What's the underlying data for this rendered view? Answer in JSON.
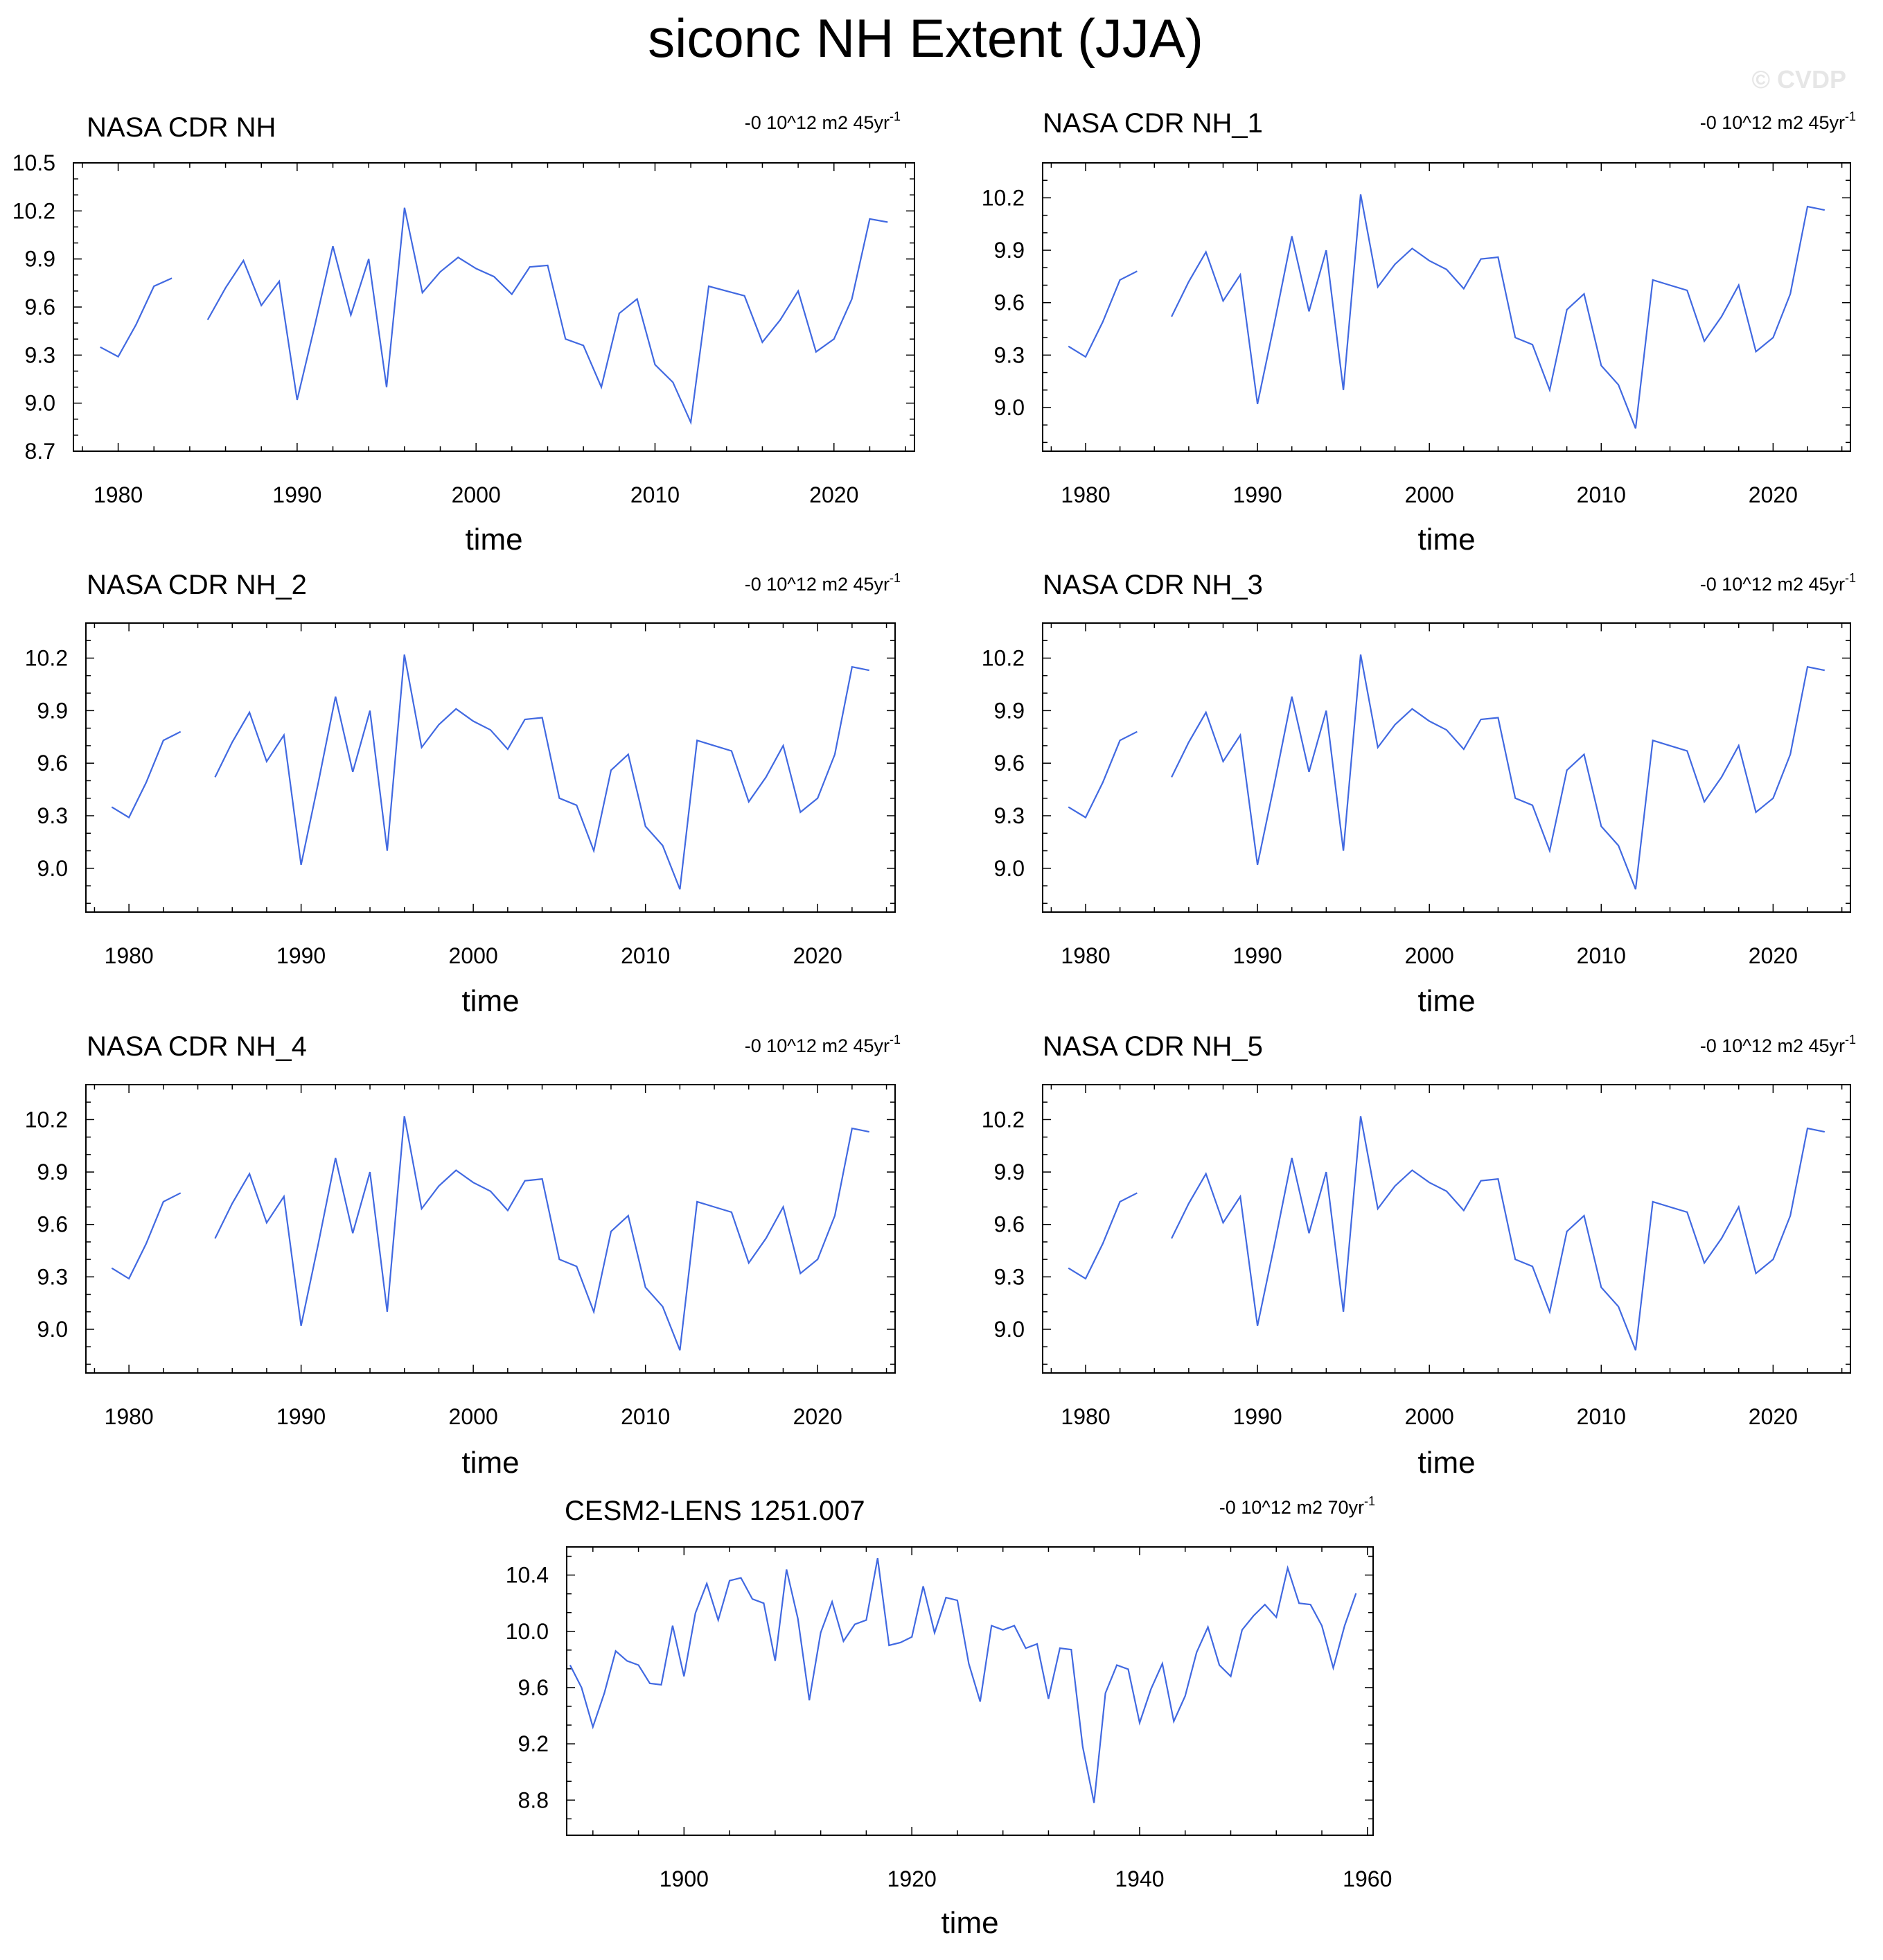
{
  "title": "siconc NH Extent (JJA)",
  "watermark": "© CVDP",
  "colors": {
    "series": "#4169e1",
    "axis": "#000000",
    "watermark": "#e6e6e6"
  },
  "chart_data": [
    {
      "type": "line",
      "title": "NASA CDR NH",
      "trend": {
        "text": "-0 10^12 m2 45yr",
        "sup": "-1"
      },
      "xlabel": "time",
      "ylabel": "",
      "xlim": [
        1977.5,
        2024.5
      ],
      "ylim": [
        8.7,
        10.5
      ],
      "xticks": [
        1980,
        1990,
        2000,
        2010,
        2020
      ],
      "yticks": [
        8.7,
        9.0,
        9.3,
        9.6,
        9.9,
        10.2,
        10.5
      ],
      "x": [
        1979,
        1980,
        1981,
        1982,
        1983,
        1984,
        1985,
        1986,
        1987,
        1988,
        1989,
        1990,
        1991,
        1992,
        1993,
        1994,
        1995,
        1996,
        1997,
        1998,
        1999,
        2000,
        2001,
        2002,
        2003,
        2004,
        2005,
        2006,
        2007,
        2008,
        2009,
        2010,
        2011,
        2012,
        2013,
        2014,
        2015,
        2016,
        2017,
        2018,
        2019,
        2020,
        2021,
        2022,
        2023
      ],
      "values": [
        9.35,
        9.29,
        9.49,
        9.73,
        9.78,
        null,
        9.52,
        9.72,
        9.89,
        9.61,
        9.76,
        9.02,
        9.49,
        9.98,
        9.55,
        9.9,
        9.1,
        10.22,
        9.69,
        9.82,
        9.91,
        9.84,
        9.79,
        9.68,
        9.85,
        9.86,
        9.4,
        9.36,
        9.1,
        9.56,
        9.65,
        9.24,
        9.13,
        8.88,
        9.73,
        9.7,
        9.67,
        9.38,
        9.52,
        9.7,
        9.32,
        9.4,
        9.65,
        10.15,
        10.13
      ]
    },
    {
      "type": "line",
      "title": "NASA CDR NH_1",
      "trend": {
        "text": "-0 10^12 m2 45yr",
        "sup": "-1"
      },
      "xlabel": "time",
      "ylabel": "",
      "xlim": [
        1977.5,
        2024.5
      ],
      "ylim": [
        8.75,
        10.4
      ],
      "xticks": [
        1980,
        1990,
        2000,
        2010,
        2020
      ],
      "yticks": [
        9.0,
        9.3,
        9.6,
        9.9,
        10.2
      ],
      "x": [
        1979,
        1980,
        1981,
        1982,
        1983,
        1984,
        1985,
        1986,
        1987,
        1988,
        1989,
        1990,
        1991,
        1992,
        1993,
        1994,
        1995,
        1996,
        1997,
        1998,
        1999,
        2000,
        2001,
        2002,
        2003,
        2004,
        2005,
        2006,
        2007,
        2008,
        2009,
        2010,
        2011,
        2012,
        2013,
        2014,
        2015,
        2016,
        2017,
        2018,
        2019,
        2020,
        2021,
        2022,
        2023
      ],
      "values": [
        9.35,
        9.29,
        9.49,
        9.73,
        9.78,
        null,
        9.52,
        9.72,
        9.89,
        9.61,
        9.76,
        9.02,
        9.49,
        9.98,
        9.55,
        9.9,
        9.1,
        10.22,
        9.69,
        9.82,
        9.91,
        9.84,
        9.79,
        9.68,
        9.85,
        9.86,
        9.4,
        9.36,
        9.1,
        9.56,
        9.65,
        9.24,
        9.13,
        8.88,
        9.73,
        9.7,
        9.67,
        9.38,
        9.52,
        9.7,
        9.32,
        9.4,
        9.65,
        10.15,
        10.13
      ]
    },
    {
      "type": "line",
      "title": "NASA CDR NH_2",
      "trend": {
        "text": "-0 10^12 m2 45yr",
        "sup": "-1"
      },
      "xlabel": "time",
      "ylabel": "",
      "xlim": [
        1977.5,
        2024.5
      ],
      "ylim": [
        8.75,
        10.4
      ],
      "xticks": [
        1980,
        1990,
        2000,
        2010,
        2020
      ],
      "yticks": [
        9.0,
        9.3,
        9.6,
        9.9,
        10.2
      ],
      "x": [
        1979,
        1980,
        1981,
        1982,
        1983,
        1984,
        1985,
        1986,
        1987,
        1988,
        1989,
        1990,
        1991,
        1992,
        1993,
        1994,
        1995,
        1996,
        1997,
        1998,
        1999,
        2000,
        2001,
        2002,
        2003,
        2004,
        2005,
        2006,
        2007,
        2008,
        2009,
        2010,
        2011,
        2012,
        2013,
        2014,
        2015,
        2016,
        2017,
        2018,
        2019,
        2020,
        2021,
        2022,
        2023
      ],
      "values": [
        9.35,
        9.29,
        9.49,
        9.73,
        9.78,
        null,
        9.52,
        9.72,
        9.89,
        9.61,
        9.76,
        9.02,
        9.49,
        9.98,
        9.55,
        9.9,
        9.1,
        10.22,
        9.69,
        9.82,
        9.91,
        9.84,
        9.79,
        9.68,
        9.85,
        9.86,
        9.4,
        9.36,
        9.1,
        9.56,
        9.65,
        9.24,
        9.13,
        8.88,
        9.73,
        9.7,
        9.67,
        9.38,
        9.52,
        9.7,
        9.32,
        9.4,
        9.65,
        10.15,
        10.13
      ]
    },
    {
      "type": "line",
      "title": "NASA CDR NH_3",
      "trend": {
        "text": "-0 10^12 m2 45yr",
        "sup": "-1"
      },
      "xlabel": "time",
      "ylabel": "",
      "xlim": [
        1977.5,
        2024.5
      ],
      "ylim": [
        8.75,
        10.4
      ],
      "xticks": [
        1980,
        1990,
        2000,
        2010,
        2020
      ],
      "yticks": [
        9.0,
        9.3,
        9.6,
        9.9,
        10.2
      ],
      "x": [
        1979,
        1980,
        1981,
        1982,
        1983,
        1984,
        1985,
        1986,
        1987,
        1988,
        1989,
        1990,
        1991,
        1992,
        1993,
        1994,
        1995,
        1996,
        1997,
        1998,
        1999,
        2000,
        2001,
        2002,
        2003,
        2004,
        2005,
        2006,
        2007,
        2008,
        2009,
        2010,
        2011,
        2012,
        2013,
        2014,
        2015,
        2016,
        2017,
        2018,
        2019,
        2020,
        2021,
        2022,
        2023
      ],
      "values": [
        9.35,
        9.29,
        9.49,
        9.73,
        9.78,
        null,
        9.52,
        9.72,
        9.89,
        9.61,
        9.76,
        9.02,
        9.49,
        9.98,
        9.55,
        9.9,
        9.1,
        10.22,
        9.69,
        9.82,
        9.91,
        9.84,
        9.79,
        9.68,
        9.85,
        9.86,
        9.4,
        9.36,
        9.1,
        9.56,
        9.65,
        9.24,
        9.13,
        8.88,
        9.73,
        9.7,
        9.67,
        9.38,
        9.52,
        9.7,
        9.32,
        9.4,
        9.65,
        10.15,
        10.13
      ]
    },
    {
      "type": "line",
      "title": "NASA CDR NH_4",
      "trend": {
        "text": "-0 10^12 m2 45yr",
        "sup": "-1"
      },
      "xlabel": "time",
      "ylabel": "",
      "xlim": [
        1977.5,
        2024.5
      ],
      "ylim": [
        8.75,
        10.4
      ],
      "xticks": [
        1980,
        1990,
        2000,
        2010,
        2020
      ],
      "yticks": [
        9.0,
        9.3,
        9.6,
        9.9,
        10.2
      ],
      "x": [
        1979,
        1980,
        1981,
        1982,
        1983,
        1984,
        1985,
        1986,
        1987,
        1988,
        1989,
        1990,
        1991,
        1992,
        1993,
        1994,
        1995,
        1996,
        1997,
        1998,
        1999,
        2000,
        2001,
        2002,
        2003,
        2004,
        2005,
        2006,
        2007,
        2008,
        2009,
        2010,
        2011,
        2012,
        2013,
        2014,
        2015,
        2016,
        2017,
        2018,
        2019,
        2020,
        2021,
        2022,
        2023
      ],
      "values": [
        9.35,
        9.29,
        9.49,
        9.73,
        9.78,
        null,
        9.52,
        9.72,
        9.89,
        9.61,
        9.76,
        9.02,
        9.49,
        9.98,
        9.55,
        9.9,
        9.1,
        10.22,
        9.69,
        9.82,
        9.91,
        9.84,
        9.79,
        9.68,
        9.85,
        9.86,
        9.4,
        9.36,
        9.1,
        9.56,
        9.65,
        9.24,
        9.13,
        8.88,
        9.73,
        9.7,
        9.67,
        9.38,
        9.52,
        9.7,
        9.32,
        9.4,
        9.65,
        10.15,
        10.13
      ]
    },
    {
      "type": "line",
      "title": "NASA CDR NH_5",
      "trend": {
        "text": "-0 10^12 m2 45yr",
        "sup": "-1"
      },
      "xlabel": "time",
      "ylabel": "",
      "xlim": [
        1977.5,
        2024.5
      ],
      "ylim": [
        8.75,
        10.4
      ],
      "xticks": [
        1980,
        1990,
        2000,
        2010,
        2020
      ],
      "yticks": [
        9.0,
        9.3,
        9.6,
        9.9,
        10.2
      ],
      "x": [
        1979,
        1980,
        1981,
        1982,
        1983,
        1984,
        1985,
        1986,
        1987,
        1988,
        1989,
        1990,
        1991,
        1992,
        1993,
        1994,
        1995,
        1996,
        1997,
        1998,
        1999,
        2000,
        2001,
        2002,
        2003,
        2004,
        2005,
        2006,
        2007,
        2008,
        2009,
        2010,
        2011,
        2012,
        2013,
        2014,
        2015,
        2016,
        2017,
        2018,
        2019,
        2020,
        2021,
        2022,
        2023
      ],
      "values": [
        9.35,
        9.29,
        9.49,
        9.73,
        9.78,
        null,
        9.52,
        9.72,
        9.89,
        9.61,
        9.76,
        9.02,
        9.49,
        9.98,
        9.55,
        9.9,
        9.1,
        10.22,
        9.69,
        9.82,
        9.91,
        9.84,
        9.79,
        9.68,
        9.85,
        9.86,
        9.4,
        9.36,
        9.1,
        9.56,
        9.65,
        9.24,
        9.13,
        8.88,
        9.73,
        9.7,
        9.67,
        9.38,
        9.52,
        9.7,
        9.32,
        9.4,
        9.65,
        10.15,
        10.13
      ]
    },
    {
      "type": "line",
      "title": "CESM2-LENS 1251.007",
      "trend": {
        "text": "-0 10^12 m2 70yr",
        "sup": "-1"
      },
      "xlabel": "time",
      "ylabel": "",
      "xlim": [
        1889.7,
        1960.5
      ],
      "ylim": [
        8.55,
        10.6
      ],
      "xticks": [
        1900,
        1920,
        1940,
        1960
      ],
      "yticks": [
        8.8,
        9.2,
        9.6,
        10.0,
        10.4
      ],
      "x": [
        1890,
        1891,
        1892,
        1893,
        1894,
        1895,
        1896,
        1897,
        1898,
        1899,
        1900,
        1901,
        1902,
        1903,
        1904,
        1905,
        1906,
        1907,
        1908,
        1909,
        1910,
        1911,
        1912,
        1913,
        1914,
        1915,
        1916,
        1917,
        1918,
        1919,
        1920,
        1921,
        1922,
        1923,
        1924,
        1925,
        1926,
        1927,
        1928,
        1929,
        1930,
        1931,
        1932,
        1933,
        1934,
        1935,
        1936,
        1937,
        1938,
        1939,
        1940,
        1941,
        1942,
        1943,
        1944,
        1945,
        1946,
        1947,
        1948,
        1949,
        1950,
        1951,
        1952,
        1953,
        1954,
        1955,
        1956,
        1957,
        1958,
        1959,
        1960
      ],
      "values": [
        9.76,
        9.6,
        9.32,
        9.56,
        9.86,
        9.79,
        9.76,
        9.63,
        9.62,
        10.04,
        9.68,
        10.13,
        10.34,
        10.08,
        10.36,
        10.38,
        10.23,
        10.2,
        9.79,
        10.44,
        10.09,
        9.51,
        9.99,
        10.21,
        9.93,
        10.05,
        10.08,
        10.52,
        9.9,
        9.92,
        9.96,
        10.32,
        9.99,
        10.24,
        10.22,
        9.77,
        9.5,
        10.04,
        10.01,
        10.04,
        9.88,
        9.91,
        9.52,
        9.88,
        9.87,
        9.18,
        8.78,
        9.56,
        9.76,
        9.73,
        9.35,
        9.59,
        9.77,
        9.36,
        9.54,
        9.85,
        10.03,
        9.76,
        9.68,
        10.01,
        10.11,
        10.19,
        10.1,
        10.45,
        10.2,
        10.19,
        10.04,
        9.74,
        10.04,
        10.27,
        null
      ]
    }
  ]
}
